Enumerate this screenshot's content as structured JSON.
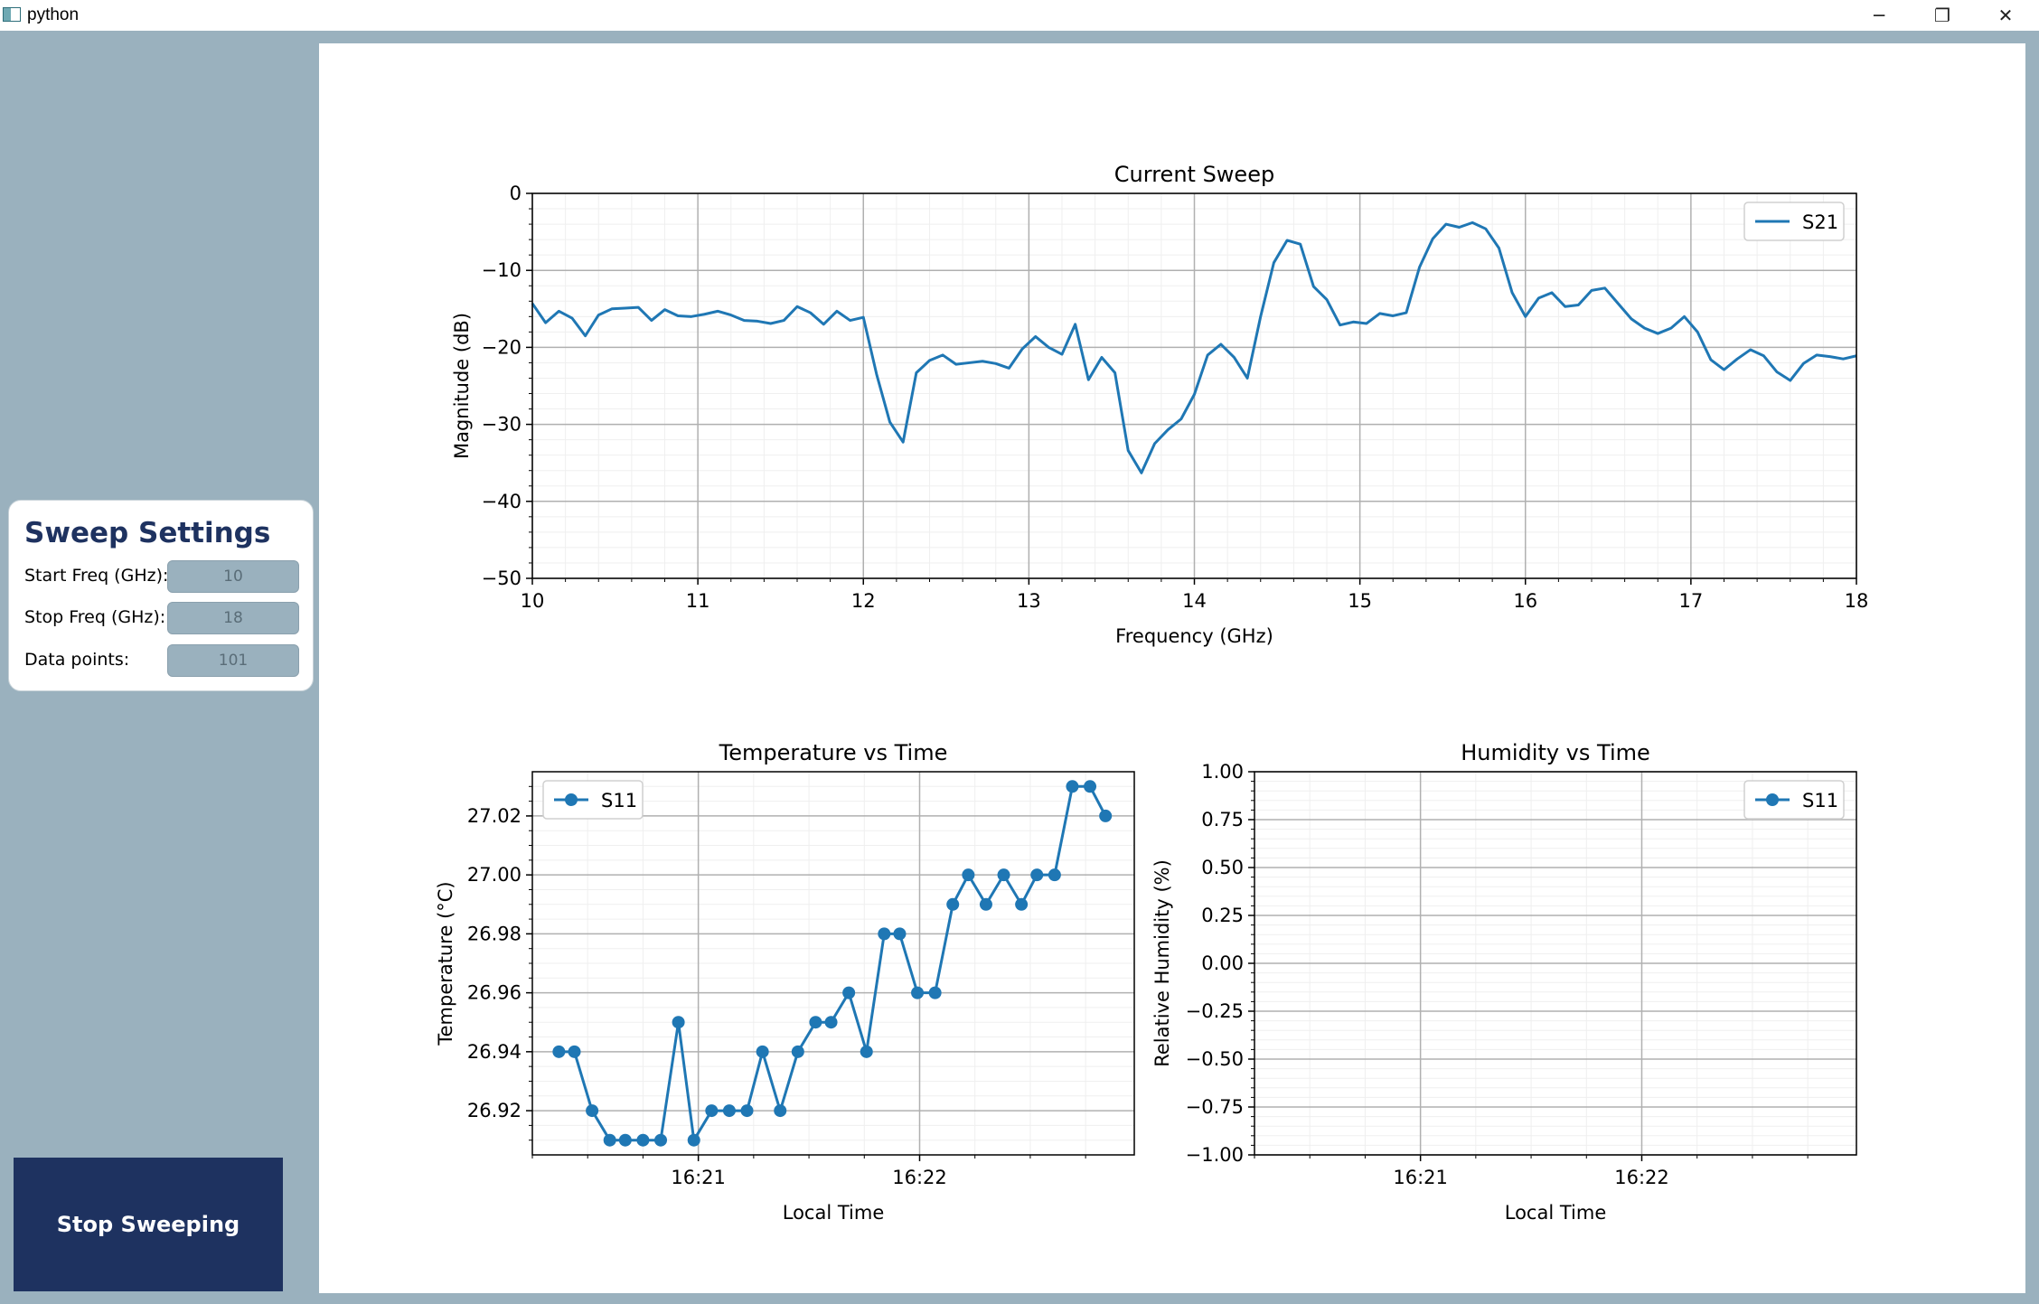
{
  "window": {
    "title": "python",
    "minimize_glyph": "─",
    "restore_glyph": "❐",
    "close_glyph": "✕"
  },
  "sidebar": {
    "heading": "Sweep Settings",
    "fields": [
      {
        "label": "Start Freq (GHz):",
        "value": "10"
      },
      {
        "label": "Stop Freq (GHz):",
        "value": "18"
      },
      {
        "label": "Data points:",
        "value": "101"
      }
    ],
    "stop_button": "Stop Sweeping"
  },
  "colors": {
    "line": "#1f77b4",
    "panel": "#9ab1be",
    "accent": "#1e3260"
  },
  "chart_data": [
    {
      "type": "line",
      "title": "Current Sweep",
      "xlabel": "Frequency (GHz)",
      "ylabel": "Magnitude (dB)",
      "xlim": [
        10,
        18
      ],
      "ylim": [
        -50,
        0
      ],
      "xticks": [
        "10",
        "11",
        "12",
        "13",
        "14",
        "15",
        "16",
        "17",
        "18"
      ],
      "yticks": [
        "0",
        "−10",
        "−20",
        "−30",
        "−40",
        "−50"
      ],
      "legend": "top-right",
      "grid": true,
      "series": [
        {
          "name": "S21",
          "x": [
            10.0,
            10.08,
            10.16,
            10.24,
            10.32,
            10.4,
            10.48,
            10.56,
            10.64,
            10.72,
            10.8,
            10.88,
            10.96,
            11.04,
            11.12,
            11.2,
            11.28,
            11.36,
            11.44,
            11.52,
            11.6,
            11.68,
            11.76,
            11.84,
            11.92,
            12.0,
            12.08,
            12.16,
            12.24,
            12.32,
            12.4,
            12.48,
            12.56,
            12.64,
            12.72,
            12.8,
            12.88,
            12.96,
            13.04,
            13.12,
            13.2,
            13.28,
            13.36,
            13.44,
            13.52,
            13.6,
            13.68,
            13.76,
            13.84,
            13.92,
            14.0,
            14.08,
            14.16,
            14.24,
            14.32,
            14.4,
            14.48,
            14.56,
            14.64,
            14.72,
            14.8,
            14.88,
            14.96,
            15.04,
            15.12,
            15.2,
            15.28,
            15.36,
            15.44,
            15.52,
            15.6,
            15.68,
            15.76,
            15.84,
            15.92,
            16.0,
            16.08,
            16.16,
            16.24,
            16.32,
            16.4,
            16.48,
            16.56,
            16.64,
            16.72,
            16.8,
            16.88,
            16.96,
            17.04,
            17.12,
            17.2,
            17.28,
            17.36,
            17.44,
            17.52,
            17.6,
            17.68,
            17.76,
            17.84,
            17.92,
            18.0
          ],
          "y": [
            -14.3,
            -16.8,
            -15.3,
            -16.2,
            -18.5,
            -15.8,
            -15.0,
            -14.9,
            -14.8,
            -16.5,
            -15.1,
            -15.9,
            -16.0,
            -15.7,
            -15.3,
            -15.8,
            -16.5,
            -16.6,
            -16.9,
            -16.5,
            -14.7,
            -15.5,
            -17.0,
            -15.3,
            -16.5,
            -16.1,
            -23.5,
            -29.7,
            -32.3,
            -23.3,
            -21.7,
            -21.0,
            -22.2,
            -22.0,
            -21.8,
            -22.1,
            -22.7,
            -20.2,
            -18.6,
            -20.0,
            -20.9,
            -17.0,
            -24.2,
            -21.3,
            -23.3,
            -33.4,
            -36.3,
            -32.5,
            -30.7,
            -29.3,
            -26.1,
            -21.0,
            -19.6,
            -21.3,
            -24.0,
            -16.0,
            -9.0,
            -6.1,
            -6.6,
            -12.1,
            -13.8,
            -17.1,
            -16.7,
            -16.9,
            -15.6,
            -15.9,
            -15.5,
            -9.6,
            -5.9,
            -4.0,
            -4.4,
            -3.8,
            -4.6,
            -7.1,
            -12.9,
            -16.0,
            -13.6,
            -12.9,
            -14.7,
            -14.5,
            -12.6,
            -12.3,
            -14.3,
            -16.3,
            -17.5,
            -18.2,
            -17.5,
            -16.0,
            -18.0,
            -21.6,
            -22.9,
            -21.5,
            -20.3,
            -21.1,
            -23.2,
            -24.3,
            -22.1,
            -21.0,
            -21.2,
            -21.5,
            -21.1
          ]
        }
      ]
    },
    {
      "type": "line",
      "title": "Temperature vs Time",
      "xlabel": "Local Time",
      "ylabel": "Temperature (°C)",
      "ylim": [
        26.905,
        27.035
      ],
      "xlim_minutes": [
        0,
        2.72
      ],
      "xticks": [
        {
          "label": "16:21",
          "at": 0.75
        },
        {
          "label": "16:22",
          "at": 1.75
        }
      ],
      "yticks": [
        26.92,
        26.94,
        26.96,
        26.98,
        27.0,
        27.02
      ],
      "legend": "top-left",
      "grid": true,
      "series": [
        {
          "name": "S11",
          "x_minutes": [
            0.12,
            0.19,
            0.27,
            0.35,
            0.42,
            0.5,
            0.58,
            0.66,
            0.73,
            0.81,
            0.89,
            0.97,
            1.04,
            1.12,
            1.2,
            1.28,
            1.35,
            1.43,
            1.51,
            1.59,
            1.66,
            1.74,
            1.82,
            1.9,
            1.97,
            2.05,
            2.13,
            2.21,
            2.28,
            2.36,
            2.44,
            2.52,
            2.59
          ],
          "y": [
            26.94,
            26.94,
            26.92,
            26.91,
            26.91,
            26.91,
            26.91,
            26.95,
            26.91,
            26.92,
            26.92,
            26.92,
            26.94,
            26.92,
            26.94,
            26.95,
            26.95,
            26.96,
            26.94,
            26.98,
            26.98,
            26.96,
            26.96,
            26.99,
            27.0,
            26.99,
            27.0,
            26.99,
            27.0,
            27.0,
            27.03,
            27.03,
            27.02
          ]
        }
      ]
    },
    {
      "type": "line",
      "title": "Humidity vs Time",
      "xlabel": "Local Time",
      "ylabel": "Relative Humidity (%)",
      "ylim": [
        -1.0,
        1.0
      ],
      "yticks": [
        "1.00",
        "0.75",
        "0.50",
        "0.25",
        "0.00",
        "−0.25",
        "−0.50",
        "−0.75",
        "−1.00"
      ],
      "xticks": [
        {
          "label": "16:21",
          "at": 0.75
        },
        {
          "label": "16:22",
          "at": 1.75
        }
      ],
      "xlim_minutes": [
        0,
        2.72
      ],
      "legend": "top-right",
      "grid": true,
      "series": [
        {
          "name": "S11",
          "x_minutes": [],
          "y": []
        }
      ]
    }
  ]
}
